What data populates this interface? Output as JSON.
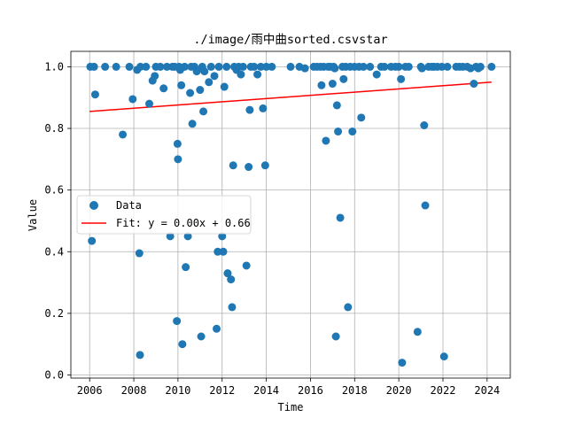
{
  "chart_data": {
    "type": "scatter",
    "title": "./image/雨中曲sorted.csvstar",
    "xlabel": "Time",
    "ylabel": "Value",
    "xlim": [
      2005.15,
      2025.05
    ],
    "ylim": [
      -0.01,
      1.05
    ],
    "grid": true,
    "legend_placement": "center-left",
    "x_ticks": [
      2006,
      2008,
      2010,
      2012,
      2014,
      2016,
      2018,
      2020,
      2022,
      2024
    ],
    "y_ticks": [
      0.0,
      0.2,
      0.4,
      0.6,
      0.8,
      1.0
    ],
    "x_tick_labels": [
      "2006",
      "2008",
      "2010",
      "2012",
      "2014",
      "2016",
      "2018",
      "2020",
      "2022",
      "2024"
    ],
    "y_tick_labels": [
      "0.0",
      "0.2",
      "0.4",
      "0.6",
      "0.8",
      "1.0"
    ],
    "series": [
      {
        "name": "Data",
        "kind": "scatter",
        "color": "#1f77b4",
        "points": [
          [
            2006.03,
            1.0
          ],
          [
            2006.1,
            0.435
          ],
          [
            2006.2,
            1.0
          ],
          [
            2006.25,
            0.91
          ],
          [
            2006.7,
            1.0
          ],
          [
            2007.2,
            1.0
          ],
          [
            2007.5,
            0.78
          ],
          [
            2007.8,
            1.0
          ],
          [
            2007.95,
            0.895
          ],
          [
            2008.15,
            0.99
          ],
          [
            2008.25,
            0.395
          ],
          [
            2008.28,
            0.065
          ],
          [
            2008.3,
            1.0
          ],
          [
            2008.55,
            1.0
          ],
          [
            2008.7,
            0.88
          ],
          [
            2008.85,
            0.955
          ],
          [
            2008.95,
            0.97
          ],
          [
            2009.0,
            1.0
          ],
          [
            2009.2,
            1.0
          ],
          [
            2009.35,
            0.93
          ],
          [
            2009.5,
            1.0
          ],
          [
            2009.65,
            0.45
          ],
          [
            2009.75,
            1.0
          ],
          [
            2009.85,
            1.0
          ],
          [
            2009.95,
            0.175
          ],
          [
            2009.98,
            0.75
          ],
          [
            2010.0,
            0.7
          ],
          [
            2010.05,
            1.0
          ],
          [
            2010.1,
            0.99
          ],
          [
            2010.15,
            0.94
          ],
          [
            2010.2,
            0.1
          ],
          [
            2010.3,
            1.0
          ],
          [
            2010.35,
            0.35
          ],
          [
            2010.45,
            0.45
          ],
          [
            2010.55,
            0.915
          ],
          [
            2010.6,
            1.0
          ],
          [
            2010.65,
            0.815
          ],
          [
            2010.75,
            1.0
          ],
          [
            2010.85,
            0.985
          ],
          [
            2011.0,
            0.925
          ],
          [
            2011.05,
            0.125
          ],
          [
            2011.1,
            1.0
          ],
          [
            2011.15,
            0.855
          ],
          [
            2011.2,
            0.985
          ],
          [
            2011.4,
            0.95
          ],
          [
            2011.5,
            1.0
          ],
          [
            2011.65,
            0.97
          ],
          [
            2011.75,
            0.15
          ],
          [
            2011.8,
            0.4
          ],
          [
            2011.85,
            1.0
          ],
          [
            2012.0,
            0.45
          ],
          [
            2012.05,
            0.4
          ],
          [
            2012.1,
            0.935
          ],
          [
            2012.2,
            1.0
          ],
          [
            2012.25,
            0.33
          ],
          [
            2012.4,
            0.31
          ],
          [
            2012.45,
            0.22
          ],
          [
            2012.5,
            0.68
          ],
          [
            2012.55,
            1.0
          ],
          [
            2012.65,
            0.99
          ],
          [
            2012.75,
            1.0
          ],
          [
            2012.85,
            0.975
          ],
          [
            2012.95,
            1.0
          ],
          [
            2013.1,
            0.355
          ],
          [
            2013.2,
            0.675
          ],
          [
            2013.25,
            0.86
          ],
          [
            2013.3,
            1.0
          ],
          [
            2013.45,
            1.0
          ],
          [
            2013.6,
            0.975
          ],
          [
            2013.75,
            1.0
          ],
          [
            2013.85,
            0.865
          ],
          [
            2013.95,
            0.68
          ],
          [
            2014.0,
            1.0
          ],
          [
            2014.25,
            1.0
          ],
          [
            2015.1,
            1.0
          ],
          [
            2015.5,
            1.0
          ],
          [
            2015.75,
            0.995
          ],
          [
            2016.15,
            1.0
          ],
          [
            2016.3,
            1.0
          ],
          [
            2016.45,
            1.0
          ],
          [
            2016.5,
            0.94
          ],
          [
            2016.6,
            1.0
          ],
          [
            2016.7,
            0.76
          ],
          [
            2016.8,
            1.0
          ],
          [
            2016.9,
            1.0
          ],
          [
            2017.0,
            0.945
          ],
          [
            2017.05,
            1.0
          ],
          [
            2017.1,
            0.995
          ],
          [
            2017.15,
            0.125
          ],
          [
            2017.2,
            0.875
          ],
          [
            2017.25,
            0.79
          ],
          [
            2017.35,
            0.51
          ],
          [
            2017.45,
            1.0
          ],
          [
            2017.5,
            0.96
          ],
          [
            2017.6,
            1.0
          ],
          [
            2017.7,
            0.22
          ],
          [
            2017.8,
            1.0
          ],
          [
            2017.9,
            0.79
          ],
          [
            2018.0,
            1.0
          ],
          [
            2018.2,
            1.0
          ],
          [
            2018.3,
            0.835
          ],
          [
            2018.4,
            1.0
          ],
          [
            2018.7,
            1.0
          ],
          [
            2019.0,
            0.975
          ],
          [
            2019.2,
            1.0
          ],
          [
            2019.35,
            1.0
          ],
          [
            2019.65,
            1.0
          ],
          [
            2019.85,
            1.0
          ],
          [
            2020.0,
            1.0
          ],
          [
            2020.1,
            0.96
          ],
          [
            2020.15,
            0.04
          ],
          [
            2020.3,
            1.0
          ],
          [
            2020.45,
            1.0
          ],
          [
            2020.85,
            0.14
          ],
          [
            2021.0,
            1.0
          ],
          [
            2021.05,
            0.995
          ],
          [
            2021.15,
            0.81
          ],
          [
            2021.2,
            0.55
          ],
          [
            2021.35,
            1.0
          ],
          [
            2021.5,
            1.0
          ],
          [
            2021.6,
            1.0
          ],
          [
            2021.75,
            1.0
          ],
          [
            2021.95,
            1.0
          ],
          [
            2022.05,
            0.06
          ],
          [
            2022.2,
            1.0
          ],
          [
            2022.6,
            1.0
          ],
          [
            2022.75,
            1.0
          ],
          [
            2022.9,
            1.0
          ],
          [
            2023.1,
            1.0
          ],
          [
            2023.25,
            0.995
          ],
          [
            2023.4,
            0.945
          ],
          [
            2023.5,
            1.0
          ],
          [
            2023.6,
            0.995
          ],
          [
            2023.7,
            1.0
          ],
          [
            2024.2,
            1.0
          ]
        ]
      },
      {
        "name": "Fit: y = 0.00x + 0.66",
        "kind": "line",
        "color": "#ff0000",
        "points": [
          [
            2006.0,
            0.855
          ],
          [
            2024.2,
            0.95
          ]
        ]
      }
    ]
  }
}
